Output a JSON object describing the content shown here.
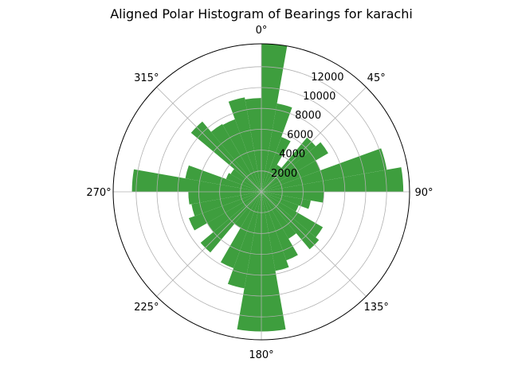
{
  "chart_data": {
    "type": "polar-bar",
    "title": "Aligned Polar Histogram of Bearings for karachi",
    "theta_direction": "clockwise",
    "theta_zero": "north",
    "theta_tick_labels": [
      "0°",
      "45°",
      "90°",
      "135°",
      "180°",
      "225°",
      "270°",
      "315°"
    ],
    "theta_ticks_deg": [
      0,
      45,
      90,
      135,
      180,
      225,
      270,
      315
    ],
    "r_ticks": [
      2000,
      4000,
      6000,
      8000,
      10000,
      12000
    ],
    "r_tick_labels": [
      "2000",
      "4000",
      "6000",
      "8000",
      "10000",
      "12000"
    ],
    "r_max": 14200,
    "grid": true,
    "bar_color": "#3e9e3e",
    "bin_width_deg": 10,
    "bins_start_deg": [
      0,
      10,
      20,
      30,
      40,
      50,
      60,
      70,
      80,
      90,
      100,
      110,
      120,
      130,
      140,
      150,
      160,
      170,
      180,
      190,
      200,
      210,
      220,
      230,
      240,
      250,
      260,
      270,
      280,
      290,
      300,
      310,
      320,
      330,
      340,
      350
    ],
    "values": [
      14500,
      8600,
      5600,
      3000,
      6800,
      7400,
      6000,
      12200,
      13600,
      6000,
      4800,
      3800,
      6800,
      7200,
      5200,
      7000,
      7700,
      13400,
      13400,
      9400,
      7800,
      4000,
      7600,
      6000,
      7400,
      6800,
      7000,
      12400,
      7400,
      3600,
      3400,
      8800,
      7500,
      7400,
      9200,
      9000
    ]
  }
}
